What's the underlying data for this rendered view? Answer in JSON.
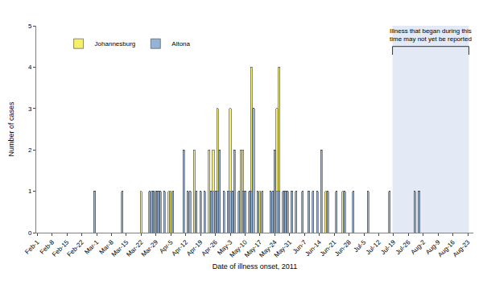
{
  "chart_data": {
    "type": "bar",
    "stacked": true,
    "grid": false,
    "legend": "upper left",
    "x_label": "Date of illness onset, 2011",
    "y_label": "Number of cases",
    "ylim": [
      0,
      5
    ],
    "yticks": [
      0,
      1,
      2,
      3,
      4,
      5
    ],
    "categories": [
      "Feb-1",
      null,
      null,
      null,
      null,
      null,
      null,
      "Feb-8",
      null,
      null,
      null,
      null,
      null,
      null,
      "Feb-15",
      null,
      null,
      null,
      null,
      null,
      null,
      "Feb-22",
      null,
      null,
      null,
      null,
      null,
      null,
      "Mar-1",
      null,
      null,
      null,
      null,
      null,
      null,
      "Mar-8",
      null,
      null,
      null,
      null,
      null,
      null,
      "Mar-15",
      null,
      null,
      null,
      null,
      null,
      null,
      "Mar-22",
      null,
      null,
      null,
      null,
      null,
      null,
      "Mar-29",
      null,
      null,
      null,
      null,
      null,
      null,
      "Apr-5",
      null,
      null,
      null,
      null,
      null,
      null,
      "Apr-12",
      null,
      null,
      null,
      null,
      null,
      null,
      "Apr-19",
      null,
      null,
      null,
      null,
      null,
      null,
      "Apr-26",
      null,
      null,
      null,
      null,
      null,
      null,
      "May-3",
      null,
      null,
      null,
      null,
      null,
      null,
      "May-10",
      null,
      null,
      null,
      null,
      null,
      null,
      "May-17",
      null,
      null,
      null,
      null,
      null,
      null,
      "May-24",
      null,
      null,
      null,
      null,
      null,
      null,
      "May-31",
      null,
      null,
      null,
      null,
      null,
      null,
      "Jun-7",
      null,
      null,
      null,
      null,
      null,
      null,
      "Jun-14",
      null,
      null,
      null,
      null,
      null,
      null,
      "Jun-21",
      null,
      null,
      null,
      null,
      null,
      null,
      "Jun-28",
      null,
      null,
      null,
      null,
      null,
      null,
      "Jul-5",
      null,
      null,
      null,
      null,
      null,
      null,
      "Jul-12",
      null,
      null,
      null,
      null,
      null,
      null,
      "Jul-19",
      null,
      null,
      null,
      null,
      null,
      null,
      "Jul-26",
      null,
      null,
      null,
      null,
      null,
      null,
      "Aug-2",
      null,
      null,
      null,
      null,
      null,
      null,
      "Aug-9",
      null,
      null,
      null,
      null,
      null,
      null,
      "Aug-16",
      null,
      null,
      null,
      null,
      null,
      null,
      "Aug-23"
    ],
    "series": [
      {
        "name": "Altona",
        "color": "#95b3d7",
        "values": [
          0,
          0,
          0,
          0,
          0,
          0,
          0,
          0,
          0,
          0,
          0,
          0,
          0,
          0,
          0,
          0,
          0,
          0,
          0,
          0,
          0,
          0,
          0,
          0,
          0,
          0,
          0,
          1,
          0,
          0,
          0,
          0,
          0,
          0,
          0,
          0,
          0,
          0,
          0,
          0,
          1,
          0,
          0,
          0,
          0,
          0,
          0,
          0,
          0,
          0,
          0,
          0,
          0,
          1,
          1,
          1,
          1,
          1,
          1,
          0,
          1,
          0,
          0,
          0,
          1,
          0,
          0,
          0,
          0,
          2,
          0,
          1,
          1,
          0,
          0,
          1,
          0,
          1,
          0,
          1,
          0,
          0,
          1,
          1,
          1,
          1,
          2,
          0,
          1,
          0,
          1,
          1,
          1,
          2,
          0,
          1,
          0,
          1,
          1,
          0,
          1,
          1,
          3,
          0,
          1,
          0,
          1,
          0,
          0,
          0,
          1,
          1,
          2,
          1,
          1,
          0,
          1,
          1,
          1,
          0,
          1,
          0,
          1,
          0,
          0,
          1,
          0,
          0,
          1,
          0,
          1,
          0,
          1,
          0,
          2,
          0,
          0,
          1,
          0,
          0,
          0,
          1,
          0,
          0,
          0,
          1,
          0,
          0,
          0,
          1,
          0,
          0,
          0,
          0,
          0,
          0,
          1,
          0,
          0,
          0,
          0,
          0,
          0,
          0,
          0,
          0,
          1,
          0,
          0,
          0,
          0,
          0,
          0,
          0,
          0,
          0,
          0,
          0,
          1,
          0,
          1,
          0,
          0,
          0,
          0,
          0,
          0,
          0,
          0,
          0,
          0,
          0,
          0,
          0,
          0,
          0,
          0,
          0,
          0,
          0,
          0,
          0,
          0,
          0
        ]
      },
      {
        "name": "Johannesburg",
        "color": "#f5ef6a",
        "values": [
          0,
          0,
          0,
          0,
          0,
          0,
          0,
          0,
          0,
          0,
          0,
          0,
          0,
          0,
          0,
          0,
          0,
          0,
          0,
          0,
          0,
          0,
          0,
          0,
          0,
          0,
          0,
          0,
          0,
          0,
          0,
          0,
          0,
          0,
          0,
          0,
          0,
          0,
          0,
          0,
          0,
          0,
          0,
          0,
          0,
          0,
          0,
          0,
          0,
          1,
          0,
          0,
          0,
          0,
          0,
          0,
          0,
          0,
          0,
          0,
          0,
          0,
          1,
          1,
          0,
          0,
          0,
          0,
          0,
          0,
          0,
          0,
          0,
          0,
          2,
          0,
          0,
          0,
          0,
          0,
          0,
          2,
          0,
          1,
          0,
          2,
          0,
          0,
          0,
          0,
          0,
          2,
          0,
          0,
          0,
          0,
          2,
          1,
          0,
          0,
          0,
          3,
          0,
          0,
          0,
          1,
          0,
          0,
          0,
          0,
          0,
          0,
          0,
          2,
          3,
          0,
          0,
          0,
          0,
          0,
          0,
          0,
          0,
          0,
          0,
          0,
          0,
          0,
          0,
          0,
          0,
          0,
          0,
          0,
          0,
          0,
          1,
          0,
          0,
          0,
          0,
          0,
          0,
          0,
          1,
          0,
          0,
          0,
          0,
          0,
          0,
          0,
          0,
          0,
          0,
          0,
          0,
          0,
          0,
          0,
          0,
          0,
          0,
          0,
          0,
          0,
          0,
          0,
          0,
          0,
          0,
          0,
          0,
          0,
          0,
          0,
          0,
          0,
          0,
          0,
          0,
          0,
          0,
          0,
          0,
          0,
          0,
          0,
          0,
          0,
          0,
          0,
          0,
          0,
          0,
          0,
          0,
          0,
          0,
          0,
          0,
          0,
          0,
          0
        ]
      }
    ],
    "annotations": [
      {
        "text": [
          "Illness that began during this",
          "time may not yet be reported"
        ],
        "from": "Jul-19",
        "to": "Aug-23"
      }
    ]
  }
}
